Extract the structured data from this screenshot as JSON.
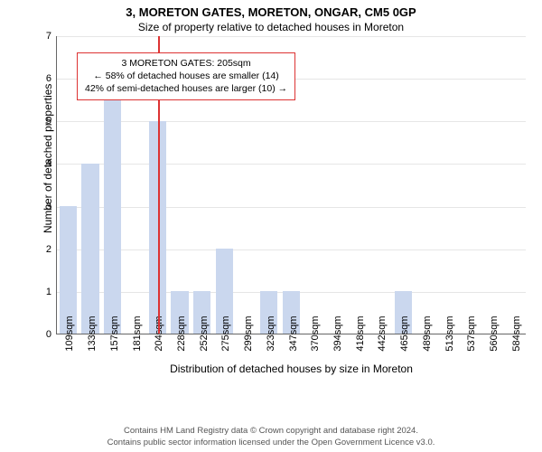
{
  "title_main": "3, MORETON GATES, MORETON, ONGAR, CM5 0GP",
  "title_sub": "Size of property relative to detached houses in Moreton",
  "y_axis": {
    "label": "Number of detached properties",
    "min": 0,
    "max": 7,
    "step": 1
  },
  "x_axis": {
    "label": "Distribution of detached houses by size in Moreton"
  },
  "chart": {
    "type": "bar",
    "bar_color": "#cad7ee",
    "grid_color": "#e6e6e6",
    "background_color": "#ffffff",
    "axis_color": "#666666",
    "font_size_title": 13,
    "font_size_subtitle": 12,
    "font_size_axis_label": 12,
    "font_size_tick": 11,
    "categories": [
      "109sqm",
      "133sqm",
      "157sqm",
      "181sqm",
      "204sqm",
      "228sqm",
      "252sqm",
      "275sqm",
      "299sqm",
      "323sqm",
      "347sqm",
      "370sqm",
      "394sqm",
      "418sqm",
      "442sqm",
      "465sqm",
      "489sqm",
      "513sqm",
      "537sqm",
      "560sqm",
      "584sqm"
    ],
    "values": [
      3,
      4,
      6,
      0,
      5,
      1,
      1,
      2,
      0,
      1,
      1,
      0,
      0,
      0,
      0,
      1,
      0,
      0,
      0,
      0,
      0
    ]
  },
  "marker": {
    "value_sqm": 205,
    "color": "#d33",
    "line_width": 2
  },
  "callout": {
    "border_color": "#d33",
    "bg_color": "#ffffff",
    "line1": "3 MORETON GATES: 205sqm",
    "line2": "← 58% of detached houses are smaller (14)",
    "line3": "42% of semi-detached houses are larger (10) →"
  },
  "footer": {
    "line1": "Contains HM Land Registry data © Crown copyright and database right 2024.",
    "line2": "Contains public sector information licensed under the Open Government Licence v3.0."
  }
}
